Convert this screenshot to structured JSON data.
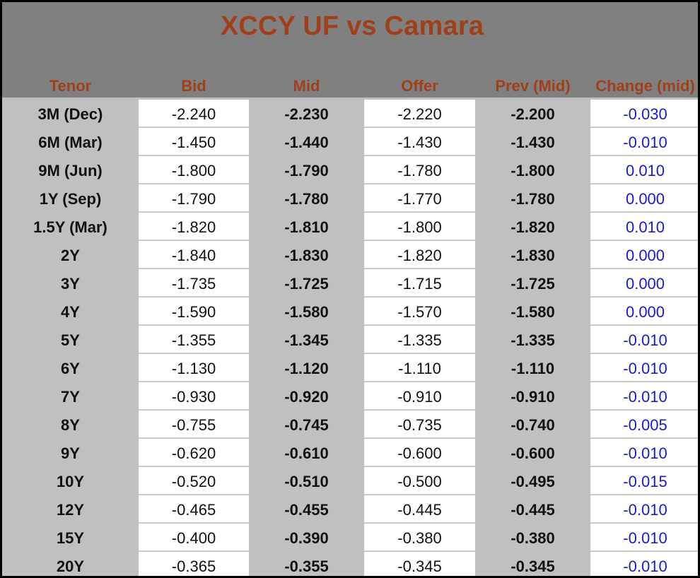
{
  "title": "XCCY UF vs Camara",
  "columns": [
    "Tenor",
    "Bid",
    "Mid",
    "Offer",
    "Prev (Mid)",
    "Change (mid)"
  ],
  "rows": [
    {
      "tenor": "3M (Dec)",
      "bid": "-2.240",
      "mid": "-2.230",
      "offer": "-2.220",
      "prev": "-2.200",
      "change": "-0.030"
    },
    {
      "tenor": "6M (Mar)",
      "bid": "-1.450",
      "mid": "-1.440",
      "offer": "-1.430",
      "prev": "-1.430",
      "change": "-0.010"
    },
    {
      "tenor": "9M (Jun)",
      "bid": "-1.800",
      "mid": "-1.790",
      "offer": "-1.780",
      "prev": "-1.800",
      "change": "0.010"
    },
    {
      "tenor": "1Y (Sep)",
      "bid": "-1.790",
      "mid": "-1.780",
      "offer": "-1.770",
      "prev": "-1.780",
      "change": "0.000"
    },
    {
      "tenor": "1.5Y (Mar)",
      "bid": "-1.820",
      "mid": "-1.810",
      "offer": "-1.800",
      "prev": "-1.820",
      "change": "0.010"
    },
    {
      "tenor": "2Y",
      "bid": "-1.840",
      "mid": "-1.830",
      "offer": "-1.820",
      "prev": "-1.830",
      "change": "0.000"
    },
    {
      "tenor": "3Y",
      "bid": "-1.735",
      "mid": "-1.725",
      "offer": "-1.715",
      "prev": "-1.725",
      "change": "0.000"
    },
    {
      "tenor": "4Y",
      "bid": "-1.590",
      "mid": "-1.580",
      "offer": "-1.570",
      "prev": "-1.580",
      "change": "0.000"
    },
    {
      "tenor": "5Y",
      "bid": "-1.355",
      "mid": "-1.345",
      "offer": "-1.335",
      "prev": "-1.335",
      "change": "-0.010"
    },
    {
      "tenor": "6Y",
      "bid": "-1.130",
      "mid": "-1.120",
      "offer": "-1.110",
      "prev": "-1.110",
      "change": "-0.010"
    },
    {
      "tenor": "7Y",
      "bid": "-0.930",
      "mid": "-0.920",
      "offer": "-0.910",
      "prev": "-0.910",
      "change": "-0.010"
    },
    {
      "tenor": "8Y",
      "bid": "-0.755",
      "mid": "-0.745",
      "offer": "-0.735",
      "prev": "-0.740",
      "change": "-0.005"
    },
    {
      "tenor": "9Y",
      "bid": "-0.620",
      "mid": "-0.610",
      "offer": "-0.600",
      "prev": "-0.600",
      "change": "-0.010"
    },
    {
      "tenor": "10Y",
      "bid": "-0.520",
      "mid": "-0.510",
      "offer": "-0.500",
      "prev": "-0.495",
      "change": "-0.015"
    },
    {
      "tenor": "12Y",
      "bid": "-0.465",
      "mid": "-0.455",
      "offer": "-0.445",
      "prev": "-0.445",
      "change": "-0.010"
    },
    {
      "tenor": "15Y",
      "bid": "-0.400",
      "mid": "-0.390",
      "offer": "-0.380",
      "prev": "-0.380",
      "change": "-0.010"
    },
    {
      "tenor": "20Y",
      "bid": "-0.365",
      "mid": "-0.355",
      "offer": "-0.345",
      "prev": "-0.345",
      "change": "-0.010"
    }
  ],
  "colors": {
    "header_bg": "#808080",
    "header_text": "#a0401a",
    "shaded_column": "#c0c0c0",
    "change_text": "#1a1acc"
  }
}
